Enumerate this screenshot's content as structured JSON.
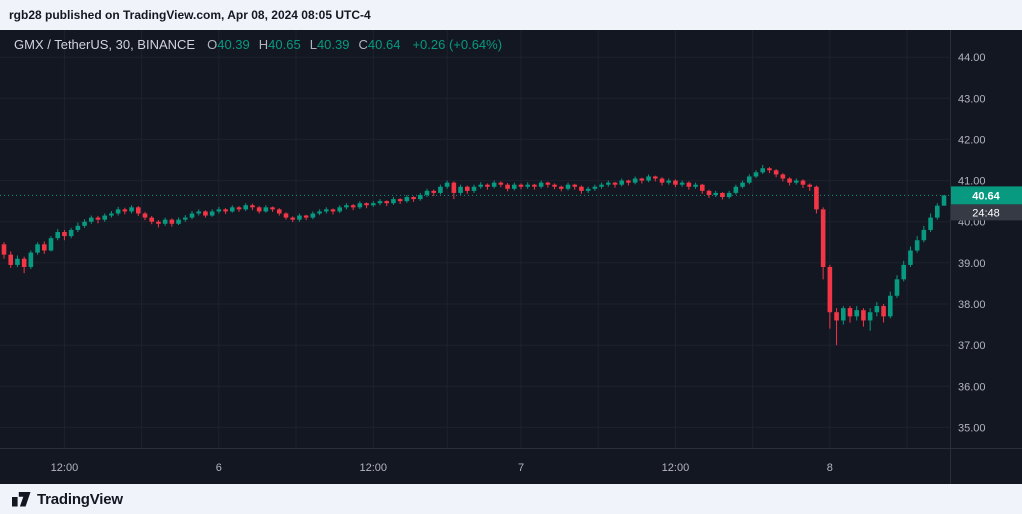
{
  "attribution": {
    "text": "rgb28 published on TradingView.com, Apr 08, 2024 08:05 UTC-4"
  },
  "symbol_header": {
    "title": "GMX / TetherUS, 30, BINANCE",
    "ohlc": [
      {
        "label": "O",
        "value": "40.39"
      },
      {
        "label": "H",
        "value": "40.65"
      },
      {
        "label": "L",
        "value": "40.39"
      },
      {
        "label": "C",
        "value": "40.64"
      }
    ],
    "change": "+0.26 (+0.64%)"
  },
  "price_scale": {
    "labels": [
      "44.00",
      "43.00",
      "42.00",
      "41.00",
      "40.00",
      "39.00",
      "38.00",
      "37.00",
      "36.00",
      "35.00"
    ],
    "current_price": "40.64",
    "countdown": "24:48"
  },
  "time_scale": {
    "labels": [
      {
        "text": "12:00",
        "index": 9
      },
      {
        "text": "6",
        "index": 32
      },
      {
        "text": "12:00",
        "index": 55
      },
      {
        "text": "7",
        "index": 77
      },
      {
        "text": "12:00",
        "index": 100
      },
      {
        "text": "8",
        "index": 123
      }
    ]
  },
  "footer": {
    "brand": "TradingView"
  },
  "colors": {
    "up": "#089981",
    "down": "#f23645",
    "background": "#131722",
    "grid": "#1e222d",
    "axis_text": "#b2b5be",
    "separator": "#2a2e39",
    "badge_bg": "#089981",
    "badge_text": "#ffffff",
    "countdown_bg": "#363a45"
  },
  "chart_data": {
    "type": "candlestick",
    "title": "GMX / TetherUS, 30, BINANCE",
    "symbol": "GMX/USDT",
    "interval": "30",
    "exchange": "BINANCE",
    "ohlc_readout": {
      "open": 40.39,
      "high": 40.65,
      "low": 40.39,
      "close": 40.64,
      "change": 0.26,
      "change_pct": 0.64
    },
    "price_min": 34.5,
    "price_max": 44.66,
    "y_axis_ticks": [
      35,
      36,
      37,
      38,
      39,
      40,
      41,
      42,
      43,
      44
    ],
    "x_axis_ticks": [
      "12:00",
      "6",
      "12:00",
      "7",
      "12:00",
      "8"
    ],
    "legend_position": "none",
    "grid": true,
    "candles": [
      [
        39.45,
        39.5,
        39.1,
        39.2
      ],
      [
        39.2,
        39.28,
        38.88,
        38.95
      ],
      [
        38.95,
        39.18,
        38.9,
        39.1
      ],
      [
        39.1,
        39.15,
        38.75,
        38.9
      ],
      [
        38.9,
        39.3,
        38.85,
        39.25
      ],
      [
        39.25,
        39.5,
        39.2,
        39.45
      ],
      [
        39.45,
        39.52,
        39.22,
        39.3
      ],
      [
        39.3,
        39.65,
        39.28,
        39.6
      ],
      [
        39.6,
        39.82,
        39.55,
        39.75
      ],
      [
        39.75,
        39.8,
        39.55,
        39.65
      ],
      [
        39.65,
        39.85,
        39.6,
        39.8
      ],
      [
        39.8,
        39.98,
        39.75,
        39.9
      ],
      [
        39.9,
        40.06,
        39.85,
        40.0
      ],
      [
        40.0,
        40.15,
        39.95,
        40.1
      ],
      [
        40.1,
        40.14,
        39.96,
        40.05
      ],
      [
        40.05,
        40.2,
        40.0,
        40.15
      ],
      [
        40.15,
        40.26,
        40.1,
        40.2
      ],
      [
        40.2,
        40.36,
        40.15,
        40.3
      ],
      [
        40.3,
        40.34,
        40.18,
        40.25
      ],
      [
        40.25,
        40.4,
        40.2,
        40.35
      ],
      [
        40.35,
        40.38,
        40.14,
        40.2
      ],
      [
        40.2,
        40.24,
        40.04,
        40.1
      ],
      [
        40.1,
        40.14,
        39.94,
        40.0
      ],
      [
        40.0,
        40.04,
        39.86,
        39.95
      ],
      [
        39.95,
        40.1,
        39.9,
        40.05
      ],
      [
        40.05,
        40.08,
        39.88,
        39.95
      ],
      [
        39.95,
        40.1,
        39.92,
        40.05
      ],
      [
        40.05,
        40.16,
        40.0,
        40.1
      ],
      [
        40.1,
        40.26,
        40.06,
        40.2
      ],
      [
        40.2,
        40.3,
        40.15,
        40.25
      ],
      [
        40.25,
        40.28,
        40.1,
        40.15
      ],
      [
        40.15,
        40.3,
        40.12,
        40.25
      ],
      [
        40.25,
        40.36,
        40.2,
        40.3
      ],
      [
        40.3,
        40.33,
        40.19,
        40.25
      ],
      [
        40.25,
        40.4,
        40.22,
        40.35
      ],
      [
        40.35,
        40.38,
        40.24,
        40.3
      ],
      [
        40.3,
        40.45,
        40.26,
        40.4
      ],
      [
        40.4,
        40.44,
        40.28,
        40.35
      ],
      [
        40.35,
        40.38,
        40.2,
        40.25
      ],
      [
        40.25,
        40.4,
        40.22,
        40.35
      ],
      [
        40.35,
        40.37,
        40.24,
        40.3
      ],
      [
        40.3,
        40.33,
        40.15,
        40.2
      ],
      [
        40.2,
        40.23,
        40.05,
        40.1
      ],
      [
        40.1,
        40.13,
        39.99,
        40.05
      ],
      [
        40.05,
        40.2,
        40.0,
        40.15
      ],
      [
        40.15,
        40.17,
        40.04,
        40.1
      ],
      [
        40.1,
        40.25,
        40.06,
        40.2
      ],
      [
        40.2,
        40.3,
        40.16,
        40.25
      ],
      [
        40.25,
        40.35,
        40.2,
        40.3
      ],
      [
        40.3,
        40.32,
        40.18,
        40.25
      ],
      [
        40.25,
        40.4,
        40.21,
        40.35
      ],
      [
        40.35,
        40.45,
        40.3,
        40.4
      ],
      [
        40.4,
        40.43,
        40.28,
        40.35
      ],
      [
        40.35,
        40.5,
        40.31,
        40.45
      ],
      [
        40.45,
        40.47,
        40.33,
        40.4
      ],
      [
        40.4,
        40.5,
        40.36,
        40.45
      ],
      [
        40.45,
        40.55,
        40.4,
        40.5
      ],
      [
        40.5,
        40.52,
        40.38,
        40.45
      ],
      [
        40.45,
        40.6,
        40.41,
        40.55
      ],
      [
        40.55,
        40.57,
        40.43,
        40.5
      ],
      [
        40.5,
        40.65,
        40.46,
        40.6
      ],
      [
        40.6,
        40.62,
        40.48,
        40.55
      ],
      [
        40.55,
        40.7,
        40.51,
        40.65
      ],
      [
        40.65,
        40.8,
        40.6,
        40.75
      ],
      [
        40.75,
        40.78,
        40.62,
        40.7
      ],
      [
        40.7,
        40.9,
        40.66,
        40.85
      ],
      [
        40.85,
        41.0,
        40.8,
        40.95
      ],
      [
        40.95,
        40.98,
        40.55,
        40.7
      ],
      [
        40.7,
        40.9,
        40.65,
        40.85
      ],
      [
        40.85,
        40.88,
        40.68,
        40.75
      ],
      [
        40.75,
        40.9,
        40.7,
        40.85
      ],
      [
        40.85,
        40.96,
        40.8,
        40.9
      ],
      [
        40.9,
        40.93,
        40.78,
        40.85
      ],
      [
        40.85,
        41.0,
        40.81,
        40.95
      ],
      [
        40.95,
        40.98,
        40.84,
        40.9
      ],
      [
        40.9,
        40.94,
        40.74,
        40.8
      ],
      [
        40.8,
        40.95,
        40.76,
        40.9
      ],
      [
        40.9,
        40.93,
        40.79,
        40.85
      ],
      [
        40.85,
        40.96,
        40.8,
        40.9
      ],
      [
        40.9,
        40.92,
        40.78,
        40.85
      ],
      [
        40.85,
        41.0,
        40.81,
        40.95
      ],
      [
        40.95,
        40.97,
        40.83,
        40.9
      ],
      [
        40.9,
        40.93,
        40.79,
        40.85
      ],
      [
        40.85,
        40.88,
        40.74,
        40.8
      ],
      [
        40.8,
        40.95,
        40.76,
        40.9
      ],
      [
        40.9,
        40.92,
        40.78,
        40.85
      ],
      [
        40.85,
        40.88,
        40.68,
        40.75
      ],
      [
        40.75,
        40.85,
        40.7,
        40.8
      ],
      [
        40.8,
        40.9,
        40.75,
        40.85
      ],
      [
        40.85,
        40.95,
        40.8,
        40.9
      ],
      [
        40.9,
        41.0,
        40.85,
        40.95
      ],
      [
        40.95,
        40.97,
        40.83,
        40.9
      ],
      [
        40.9,
        41.05,
        40.86,
        41.0
      ],
      [
        41.0,
        41.02,
        40.88,
        40.95
      ],
      [
        40.95,
        41.1,
        40.91,
        41.05
      ],
      [
        41.05,
        41.07,
        40.93,
        41.0
      ],
      [
        41.0,
        41.15,
        40.96,
        41.1
      ],
      [
        41.1,
        41.12,
        40.98,
        41.05
      ],
      [
        41.05,
        41.08,
        40.88,
        40.95
      ],
      [
        40.95,
        41.05,
        40.9,
        41.0
      ],
      [
        41.0,
        41.03,
        40.84,
        40.9
      ],
      [
        40.9,
        41.0,
        40.85,
        40.95
      ],
      [
        40.95,
        40.98,
        40.78,
        40.85
      ],
      [
        40.85,
        40.95,
        40.8,
        40.9
      ],
      [
        40.9,
        40.92,
        40.68,
        40.75
      ],
      [
        40.75,
        40.78,
        40.58,
        40.65
      ],
      [
        40.65,
        40.75,
        40.6,
        40.7
      ],
      [
        40.7,
        40.72,
        40.54,
        40.6
      ],
      [
        40.6,
        40.75,
        40.56,
        40.7
      ],
      [
        40.7,
        40.9,
        40.66,
        40.85
      ],
      [
        40.85,
        41.0,
        40.81,
        40.95
      ],
      [
        40.95,
        41.15,
        40.91,
        41.1
      ],
      [
        41.1,
        41.25,
        41.06,
        41.2
      ],
      [
        41.2,
        41.38,
        41.16,
        41.3
      ],
      [
        41.3,
        41.33,
        41.18,
        41.25
      ],
      [
        41.25,
        41.28,
        41.08,
        41.15
      ],
      [
        41.15,
        41.18,
        40.98,
        41.05
      ],
      [
        41.05,
        41.08,
        40.88,
        40.95
      ],
      [
        40.95,
        41.05,
        40.9,
        41.0
      ],
      [
        41.0,
        41.03,
        40.82,
        40.9
      ],
      [
        40.9,
        40.93,
        40.75,
        40.85
      ],
      [
        40.85,
        40.88,
        40.2,
        40.3
      ],
      [
        40.3,
        40.35,
        38.6,
        38.9
      ],
      [
        38.9,
        38.95,
        37.4,
        37.8
      ],
      [
        37.8,
        37.9,
        37.0,
        37.6
      ],
      [
        37.6,
        37.95,
        37.5,
        37.9
      ],
      [
        37.9,
        37.95,
        37.55,
        37.7
      ],
      [
        37.7,
        37.95,
        37.6,
        37.85
      ],
      [
        37.85,
        37.9,
        37.45,
        37.6
      ],
      [
        37.6,
        37.9,
        37.35,
        37.8
      ],
      [
        37.8,
        38.05,
        37.7,
        37.95
      ],
      [
        37.95,
        38.0,
        37.55,
        37.7
      ],
      [
        37.7,
        38.3,
        37.65,
        38.2
      ],
      [
        38.2,
        38.7,
        38.15,
        38.6
      ],
      [
        38.6,
        39.05,
        38.55,
        38.95
      ],
      [
        38.95,
        39.4,
        38.9,
        39.3
      ],
      [
        39.3,
        39.65,
        39.25,
        39.55
      ],
      [
        39.55,
        39.9,
        39.5,
        39.8
      ],
      [
        39.8,
        40.2,
        39.75,
        40.1
      ],
      [
        40.1,
        40.45,
        40.05,
        40.39
      ],
      [
        40.39,
        40.65,
        40.39,
        40.64
      ]
    ]
  }
}
